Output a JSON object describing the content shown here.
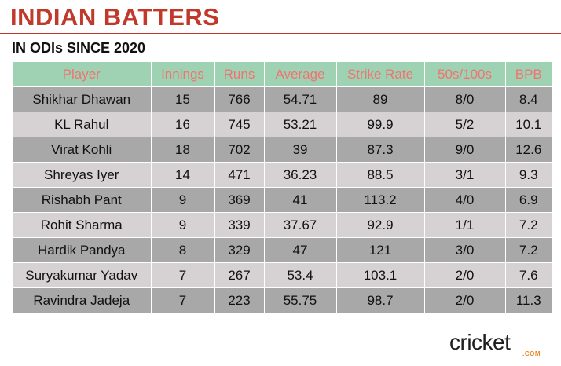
{
  "header": {
    "title": "INDIAN BATTERS",
    "subtitle": "IN ODIs SINCE 2020"
  },
  "table": {
    "columns": [
      "Player",
      "Innings",
      "Runs",
      "Average",
      "Strike Rate",
      "50s/100s",
      "BPB"
    ],
    "rows": [
      [
        "Shikhar Dhawan",
        "15",
        "766",
        "54.71",
        "89",
        "8/0",
        "8.4"
      ],
      [
        "KL Rahul",
        "16",
        "745",
        "53.21",
        "99.9",
        "5/2",
        "10.1"
      ],
      [
        "Virat Kohli",
        "18",
        "702",
        "39",
        "87.3",
        "9/0",
        "12.6"
      ],
      [
        "Shreyas Iyer",
        "14",
        "471",
        "36.23",
        "88.5",
        "3/1",
        "9.3"
      ],
      [
        "Rishabh Pant",
        "9",
        "369",
        "41",
        "113.2",
        "4/0",
        "6.9"
      ],
      [
        "Rohit Sharma",
        "9",
        "339",
        "37.67",
        "92.9",
        "1/1",
        "7.2"
      ],
      [
        "Hardik Pandya",
        "8",
        "329",
        "47",
        "121",
        "3/0",
        "7.2"
      ],
      [
        "Suryakumar Yadav",
        "7",
        "267",
        "53.4",
        "103.1",
        "2/0",
        "7.6"
      ],
      [
        "Ravindra Jadeja",
        "7",
        "223",
        "55.75",
        "98.7",
        "2/0",
        "11.3"
      ]
    ]
  },
  "logo": {
    "word": "cricket",
    "sub": ".COM"
  },
  "colors": {
    "title": "#c0392b",
    "header_bg": "#9fd2b2",
    "header_text": "#f07373",
    "row_dark": "#a8a8a8",
    "row_light": "#d6d1d3",
    "logo_accent": "#e8892a"
  }
}
